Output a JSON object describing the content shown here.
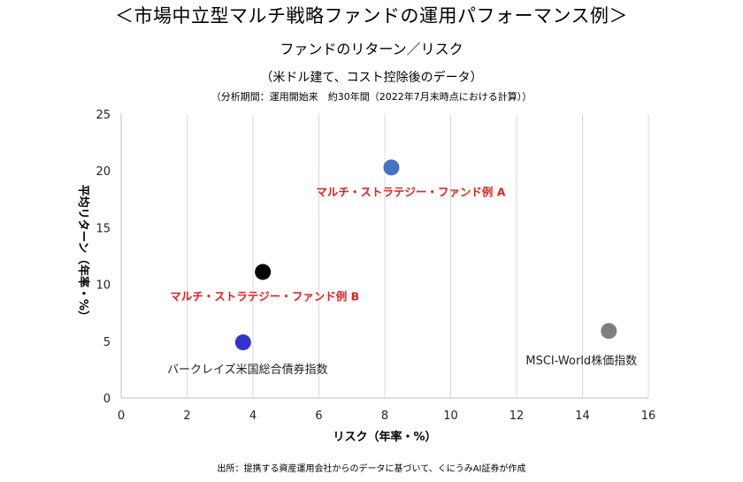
{
  "header": {
    "title": "＜市場中立型マルチ戦略ファンドの運用パフォーマンス例＞",
    "subtitle": "ファンドのリターン／リスク",
    "note1": "（米ドル建て、コスト控除後のデータ）",
    "note2": "（分析期間：運用開始来　約30年間（2022年7月末時点における計算））"
  },
  "footer": {
    "source": "出所：提携する資産運用会社からのデータに基づいて、くにうみAI証券が作成"
  },
  "chart_data": {
    "type": "scatter",
    "xlabel": "リスク（年率・%）",
    "ylabel": "平均リターン（年率・%）",
    "xlim": [
      0,
      16
    ],
    "ylim": [
      0,
      25
    ],
    "x_ticks": [
      0,
      2,
      4,
      6,
      8,
      10,
      12,
      14,
      16
    ],
    "y_ticks": [
      0,
      5,
      10,
      15,
      20,
      25
    ],
    "grid": "vertical",
    "points": [
      {
        "label": "マルチ・ストラテジー・ファンド例 A",
        "x": 8.2,
        "y": 20.3,
        "color": "#4472c4",
        "label_color": "#e0201b",
        "label_bold": true
      },
      {
        "label": "マルチ・ストラテジー・ファンド例 B",
        "x": 4.3,
        "y": 11.1,
        "color": "#000000",
        "label_color": "#e0201b",
        "label_bold": true
      },
      {
        "label": "バークレイズ米国総合債券指数",
        "x": 3.7,
        "y": 4.9,
        "color": "#3333cc",
        "label_color": "#222222",
        "label_bold": false
      },
      {
        "label": "MSCI-World株価指数",
        "x": 14.8,
        "y": 5.9,
        "color": "#7f7f7f",
        "label_color": "#222222",
        "label_bold": false
      }
    ]
  }
}
